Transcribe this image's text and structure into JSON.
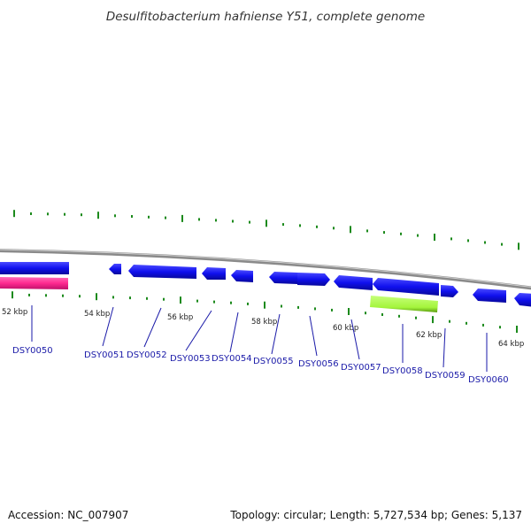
{
  "title": "Desulfitobacterium hafniense Y51, complete genome",
  "footer": {
    "accession": "Accession: NC_007907",
    "summary": "Topology: circular; Length: 5,727,534 bp; Genes: 5,137"
  },
  "colors": {
    "plus_strand_gene": "#1010ee",
    "minus_strand_special": "#ff2a90",
    "highlight_gene": "#a4f53c",
    "tick": "#1c8a1c",
    "label_line": "#1a1aa8",
    "backbone": "#888888"
  },
  "scale_labels": [
    "52 kbp",
    "54 kbp",
    "56 kbp",
    "58 kbp",
    "60 kbp",
    "62 kbp",
    "64 kbp"
  ],
  "genes": [
    {
      "label": "DSY0050"
    },
    {
      "label": "DSY0051"
    },
    {
      "label": "DSY0052"
    },
    {
      "label": "DSY0053"
    },
    {
      "label": "DSY0054"
    },
    {
      "label": "DSY0055"
    },
    {
      "label": "DSY0056"
    },
    {
      "label": "DSY0057"
    },
    {
      "label": "DSY0058"
    },
    {
      "label": "DSY0059"
    },
    {
      "label": "DSY0060"
    }
  ]
}
